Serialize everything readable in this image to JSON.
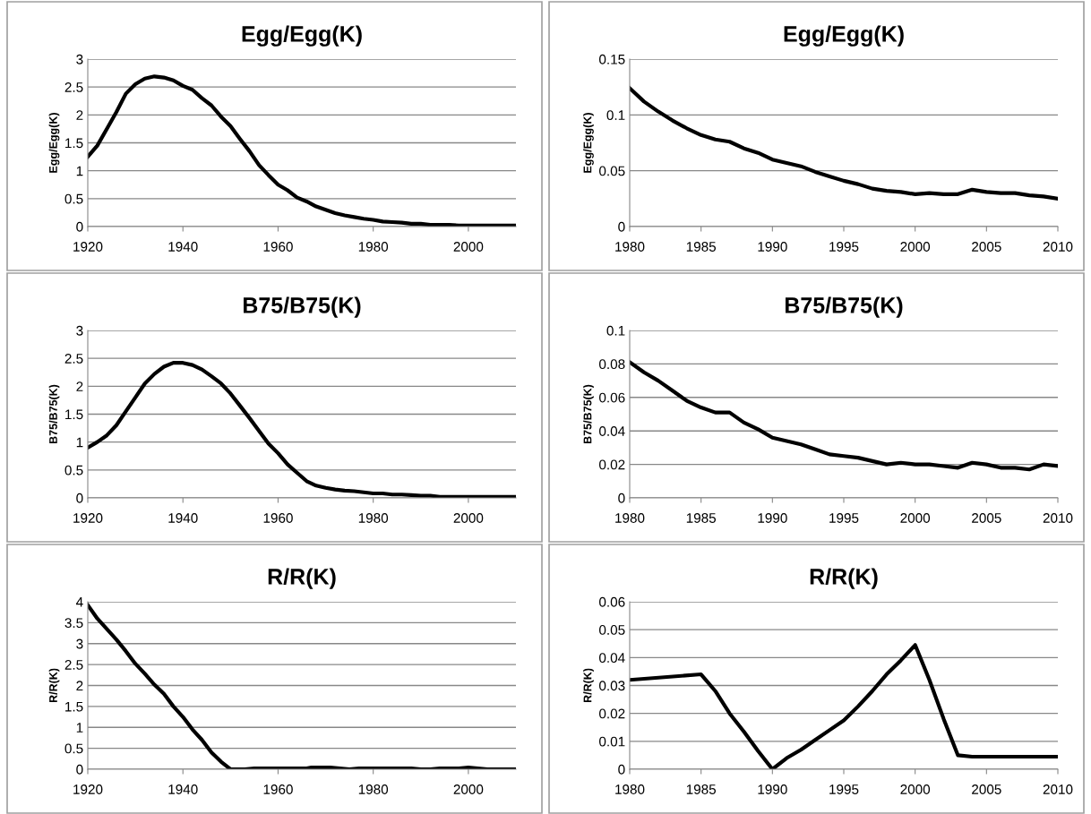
{
  "chart_data": [
    {
      "type": "line",
      "title": "Egg/Egg(K)",
      "ylabel": "Egg/Egg(K)",
      "xlim": [
        1920,
        2010
      ],
      "xticks": [
        1920,
        1940,
        1960,
        1980,
        2000
      ],
      "ylim": [
        0,
        3
      ],
      "yticks": [
        0,
        0.5,
        1,
        1.5,
        2,
        2.5,
        3
      ],
      "grid": "y",
      "marker": "none",
      "line_style": "solid",
      "series": [
        {
          "color": "#000000",
          "x": [
            1920,
            1922,
            1924,
            1926,
            1928,
            1930,
            1932,
            1934,
            1936,
            1938,
            1940,
            1942,
            1944,
            1946,
            1948,
            1950,
            1952,
            1954,
            1956,
            1958,
            1960,
            1962,
            1964,
            1966,
            1968,
            1970,
            1972,
            1974,
            1976,
            1978,
            1980,
            1982,
            1984,
            1986,
            1988,
            1990,
            1992,
            1994,
            1996,
            1998,
            2000,
            2005,
            2010
          ],
          "values": [
            1.25,
            1.45,
            1.75,
            2.05,
            2.38,
            2.55,
            2.65,
            2.69,
            2.67,
            2.62,
            2.52,
            2.45,
            2.3,
            2.17,
            1.97,
            1.8,
            1.57,
            1.35,
            1.1,
            0.92,
            0.75,
            0.65,
            0.52,
            0.45,
            0.36,
            0.3,
            0.24,
            0.2,
            0.17,
            0.14,
            0.12,
            0.09,
            0.08,
            0.07,
            0.05,
            0.05,
            0.03,
            0.03,
            0.03,
            0.02,
            0.02,
            0.02,
            0.02
          ]
        }
      ]
    },
    {
      "type": "line",
      "title": "Egg/Egg(K)",
      "ylabel": "Egg/Egg(K)",
      "xlim": [
        1980,
        2010
      ],
      "xticks": [
        1980,
        1985,
        1990,
        1995,
        2000,
        2005,
        2010
      ],
      "ylim": [
        0,
        0.15
      ],
      "yticks": [
        0,
        0.05,
        0.1,
        0.15
      ],
      "grid": "y",
      "marker": "none",
      "line_style": "solid",
      "series": [
        {
          "color": "#000000",
          "x": [
            1980,
            1981,
            1982,
            1983,
            1984,
            1985,
            1986,
            1987,
            1988,
            1989,
            1990,
            1991,
            1992,
            1993,
            1994,
            1995,
            1996,
            1997,
            1998,
            1999,
            2000,
            2001,
            2002,
            2003,
            2004,
            2005,
            2006,
            2007,
            2008,
            2009,
            2010
          ],
          "values": [
            0.124,
            0.112,
            0.103,
            0.095,
            0.088,
            0.082,
            0.078,
            0.076,
            0.07,
            0.066,
            0.06,
            0.057,
            0.054,
            0.049,
            0.045,
            0.041,
            0.038,
            0.034,
            0.032,
            0.031,
            0.029,
            0.03,
            0.029,
            0.029,
            0.033,
            0.031,
            0.03,
            0.03,
            0.028,
            0.027,
            0.025
          ]
        }
      ]
    },
    {
      "type": "line",
      "title": "B75/B75(K)",
      "ylabel": "B75/B75(K)",
      "xlim": [
        1920,
        2010
      ],
      "xticks": [
        1920,
        1940,
        1960,
        1980,
        2000
      ],
      "ylim": [
        0,
        3
      ],
      "yticks": [
        0,
        0.5,
        1,
        1.5,
        2,
        2.5,
        3
      ],
      "grid": "y",
      "marker": "none",
      "line_style": "solid",
      "series": [
        {
          "color": "#000000",
          "x": [
            1920,
            1922,
            1924,
            1926,
            1928,
            1930,
            1932,
            1934,
            1936,
            1938,
            1940,
            1942,
            1944,
            1946,
            1948,
            1950,
            1952,
            1954,
            1956,
            1958,
            1960,
            1962,
            1964,
            1966,
            1968,
            1970,
            1972,
            1974,
            1976,
            1978,
            1980,
            1982,
            1984,
            1986,
            1988,
            1990,
            1992,
            1994,
            2000,
            2010
          ],
          "values": [
            0.9,
            1.0,
            1.12,
            1.3,
            1.55,
            1.8,
            2.05,
            2.22,
            2.35,
            2.42,
            2.42,
            2.38,
            2.3,
            2.18,
            2.05,
            1.87,
            1.65,
            1.43,
            1.2,
            0.97,
            0.8,
            0.6,
            0.45,
            0.3,
            0.22,
            0.18,
            0.15,
            0.13,
            0.12,
            0.1,
            0.08,
            0.08,
            0.06,
            0.06,
            0.05,
            0.04,
            0.04,
            0.02,
            0.02,
            0.02
          ]
        }
      ]
    },
    {
      "type": "line",
      "title": "B75/B75(K)",
      "ylabel": "B75/B75(K)",
      "xlim": [
        1980,
        2010
      ],
      "xticks": [
        1980,
        1985,
        1990,
        1995,
        2000,
        2005,
        2010
      ],
      "ylim": [
        0,
        0.1
      ],
      "yticks": [
        0,
        0.02,
        0.04,
        0.06,
        0.08,
        0.1
      ],
      "grid": "y",
      "marker": "none",
      "line_style": "solid",
      "series": [
        {
          "color": "#000000",
          "x": [
            1980,
            1981,
            1982,
            1983,
            1984,
            1985,
            1986,
            1987,
            1988,
            1989,
            1990,
            1991,
            1992,
            1993,
            1994,
            1995,
            1996,
            1997,
            1998,
            1999,
            2000,
            2001,
            2002,
            2003,
            2004,
            2005,
            2006,
            2007,
            2008,
            2009,
            2010
          ],
          "values": [
            0.081,
            0.075,
            0.07,
            0.064,
            0.058,
            0.054,
            0.051,
            0.051,
            0.045,
            0.041,
            0.036,
            0.034,
            0.032,
            0.029,
            0.026,
            0.025,
            0.024,
            0.022,
            0.02,
            0.021,
            0.02,
            0.02,
            0.019,
            0.018,
            0.021,
            0.02,
            0.018,
            0.018,
            0.017,
            0.02,
            0.019
          ]
        }
      ]
    },
    {
      "type": "line",
      "title": "R/R(K)",
      "ylabel": "R/R(K)",
      "xlim": [
        1920,
        2010
      ],
      "xticks": [
        1920,
        1940,
        1960,
        1980,
        2000
      ],
      "ylim": [
        0,
        4
      ],
      "yticks": [
        0,
        0.5,
        1,
        1.5,
        2,
        2.5,
        3,
        3.5,
        4
      ],
      "grid": "y",
      "marker": "none",
      "line_style": "solid",
      "series": [
        {
          "color": "#000000",
          "x": [
            1920,
            1922,
            1924,
            1926,
            1928,
            1930,
            1932,
            1934,
            1936,
            1938,
            1940,
            1942,
            1944,
            1946,
            1948,
            1950,
            1953,
            1955,
            1960,
            1966,
            1967,
            1971,
            1973,
            1975,
            1977,
            1988,
            1990,
            1992,
            1994,
            1998,
            2000,
            2002,
            2004,
            2010
          ],
          "values": [
            3.92,
            3.6,
            3.35,
            3.1,
            2.82,
            2.52,
            2.28,
            2.02,
            1.8,
            1.5,
            1.25,
            0.95,
            0.7,
            0.4,
            0.18,
            0.0,
            0.0,
            0.02,
            0.02,
            0.02,
            0.04,
            0.04,
            0.02,
            0.0,
            0.02,
            0.02,
            0.0,
            0.0,
            0.02,
            0.02,
            0.04,
            0.02,
            0.0,
            0.0
          ]
        }
      ]
    },
    {
      "type": "line",
      "title": "R/R(K)",
      "ylabel": "R/R(K)",
      "xlim": [
        1980,
        2010
      ],
      "xticks": [
        1980,
        1985,
        1990,
        1995,
        2000,
        2005,
        2010
      ],
      "ylim": [
        0,
        0.06
      ],
      "yticks": [
        0,
        0.01,
        0.02,
        0.03,
        0.04,
        0.05,
        0.06
      ],
      "grid": "y",
      "marker": "none",
      "line_style": "solid",
      "series": [
        {
          "color": "#000000",
          "x": [
            1980,
            1985,
            1986,
            1987,
            1988,
            1989,
            1990,
            1991,
            1992,
            1993,
            1994,
            1995,
            1996,
            1997,
            1998,
            1999,
            2000,
            2001,
            2002,
            2003,
            2004,
            2010
          ],
          "values": [
            0.032,
            0.034,
            0.028,
            0.02,
            0.0135,
            0.0065,
            0.0,
            0.004,
            0.007,
            0.0105,
            0.014,
            0.0175,
            0.0225,
            0.028,
            0.034,
            0.039,
            0.0445,
            0.032,
            0.018,
            0.005,
            0.0045,
            0.0045
          ]
        }
      ]
    }
  ]
}
